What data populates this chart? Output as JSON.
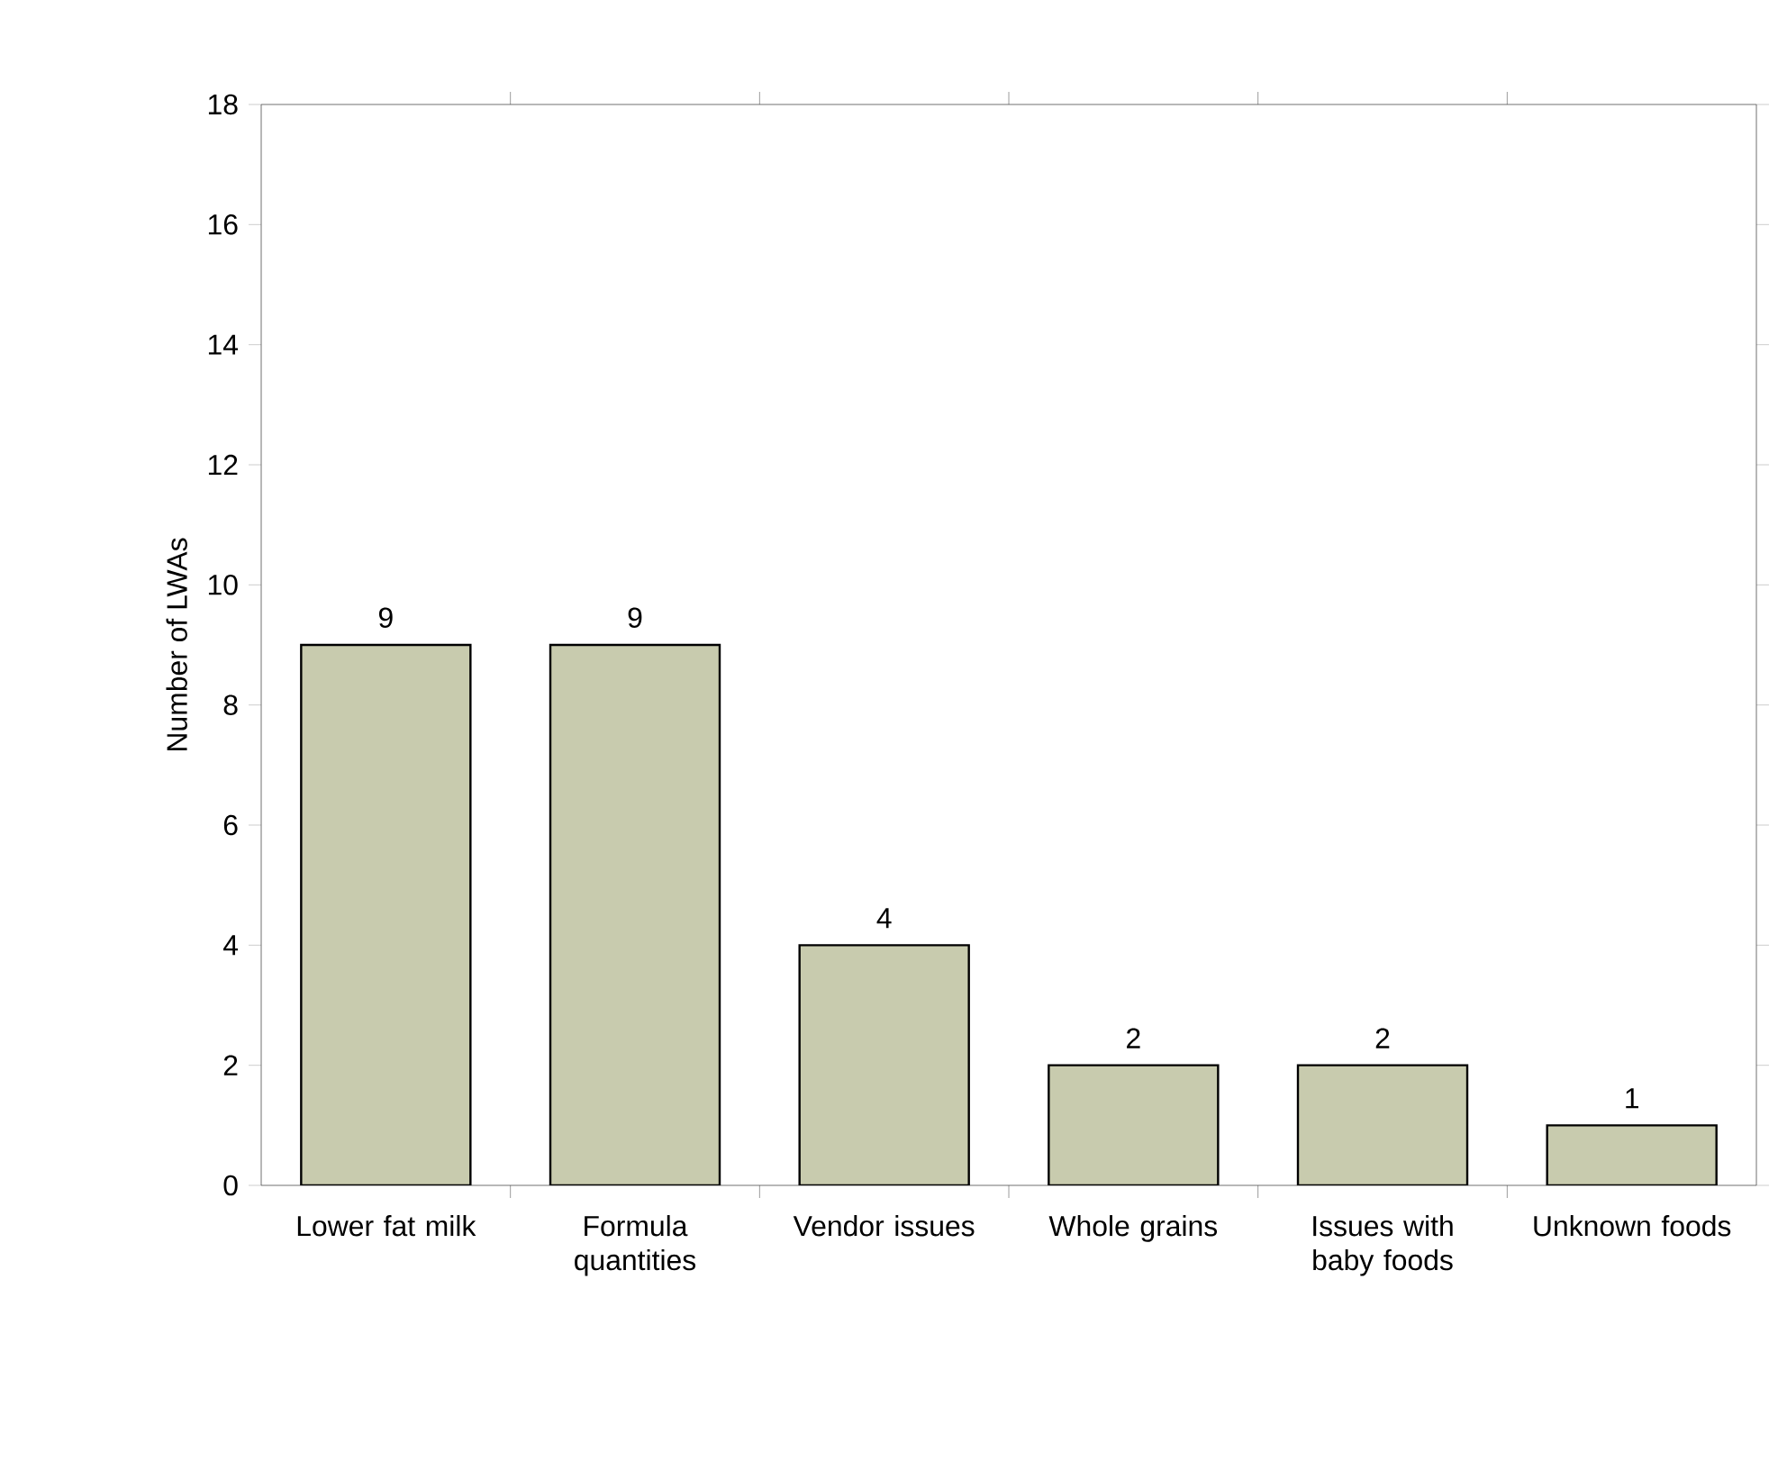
{
  "chart_data": {
    "type": "bar",
    "ylabel": "Number of LWAs",
    "categories": [
      "Lower fat milk",
      "Formula quantities",
      "Vendor issues",
      "Whole grains",
      "Issues with baby foods",
      "Unknown foods"
    ],
    "values": [
      9,
      9,
      4,
      2,
      2,
      1
    ],
    "color": "#c8cbae",
    "ylim": [
      0,
      18
    ],
    "yticks": [
      0,
      2,
      4,
      6,
      8,
      10,
      12,
      14,
      16,
      18
    ],
    "grid": false,
    "data_labels": true
  }
}
